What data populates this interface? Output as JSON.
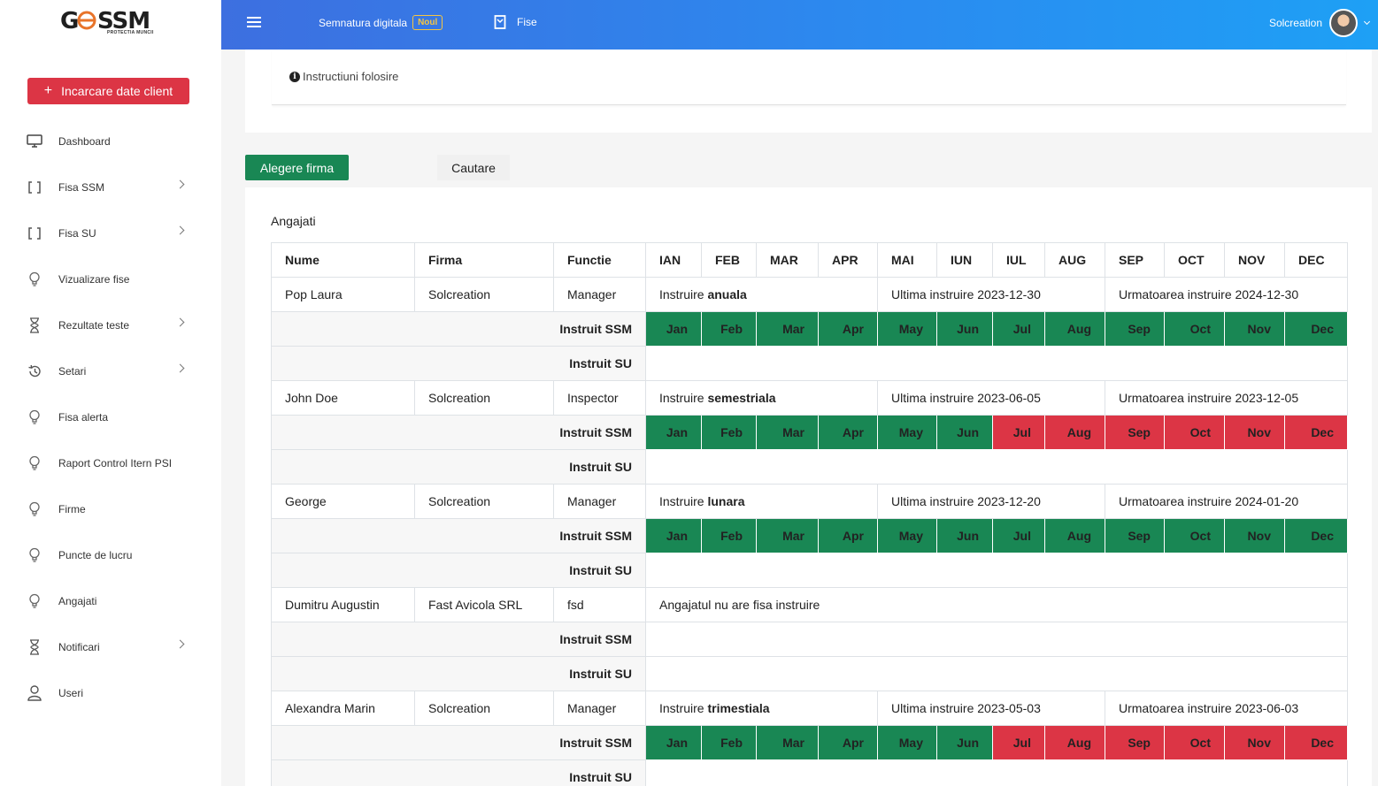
{
  "brand": {
    "logo": "G SSM",
    "tagline": "PROTECTIA MUNCII"
  },
  "sidebar": {
    "load_button": "Incarcare date client",
    "items": [
      {
        "label": "Dashboard",
        "icon": "monitor-icon",
        "has_children": false
      },
      {
        "label": "Fisa SSM",
        "icon": "brackets-icon",
        "has_children": true
      },
      {
        "label": "Fisa SU",
        "icon": "brackets-icon",
        "has_children": true
      },
      {
        "label": "Vizualizare fise",
        "icon": "bulb-icon",
        "has_children": false
      },
      {
        "label": "Rezultate teste",
        "icon": "hourglass-icon",
        "has_children": true
      },
      {
        "label": "Setari",
        "icon": "history-icon",
        "has_children": true
      },
      {
        "label": "Fisa alerta",
        "icon": "bulb-icon",
        "has_children": false
      },
      {
        "label": "Raport Control Itern PSI",
        "icon": "bulb-icon",
        "has_children": false
      },
      {
        "label": "Firme",
        "icon": "bulb-icon",
        "has_children": false
      },
      {
        "label": "Puncte de lucru",
        "icon": "bulb-icon",
        "has_children": false
      },
      {
        "label": "Angajati",
        "icon": "bulb-icon",
        "has_children": false
      },
      {
        "label": "Notificari",
        "icon": "hourglass-icon",
        "has_children": true
      },
      {
        "label": "Useri",
        "icon": "user-icon",
        "has_children": false
      }
    ]
  },
  "topbar": {
    "signature": "Semnatura digitala",
    "new_badge": "Noul",
    "fise": "Fise",
    "username": "Solcreation"
  },
  "instructions": "Instructiuni folosire",
  "tabs": {
    "choose_company": "Alegere firma",
    "search": "Cautare"
  },
  "section_title": "Angajati",
  "table": {
    "headers": [
      "Nume",
      "Firma",
      "Functie"
    ],
    "months_header": [
      "IAN",
      "FEB",
      "MAR",
      "APR",
      "MAI",
      "IUN",
      "IUL",
      "AUG",
      "SEP",
      "OCT",
      "NOV",
      "DEC"
    ],
    "months": [
      "Jan",
      "Feb",
      "Mar",
      "Apr",
      "May",
      "Jun",
      "Jul",
      "Aug",
      "Sep",
      "Oct",
      "Nov",
      "Dec"
    ],
    "ssm_label": "Instruit SSM",
    "su_label": "Instruit SU",
    "employees": [
      {
        "name": "Pop Laura",
        "company": "Solcreation",
        "role": "Manager",
        "training_prefix": "Instruire ",
        "training_type": "anuala",
        "last": "Ultima instruire 2023-12-30",
        "next": "Urmatoarea instruire 2024-12-30",
        "status": [
          "g",
          "g",
          "g",
          "g",
          "g",
          "g",
          "g",
          "g",
          "g",
          "g",
          "g",
          "g"
        ]
      },
      {
        "name": "John Doe",
        "company": "Solcreation",
        "role": "Inspector",
        "training_prefix": "Instruire ",
        "training_type": "semestriala",
        "last": "Ultima instruire 2023-06-05",
        "next": "Urmatoarea instruire 2023-12-05",
        "status": [
          "g",
          "g",
          "g",
          "g",
          "g",
          "g",
          "r",
          "r",
          "r",
          "r",
          "r",
          "r"
        ]
      },
      {
        "name": "George",
        "company": "Solcreation",
        "role": "Manager",
        "training_prefix": "Instruire ",
        "training_type": "lunara",
        "last": "Ultima instruire 2023-12-20",
        "next": "Urmatoarea instruire 2024-01-20",
        "status": [
          "g",
          "g",
          "g",
          "g",
          "g",
          "g",
          "g",
          "g",
          "g",
          "g",
          "g",
          "g"
        ]
      },
      {
        "name": "Dumitru Augustin",
        "company": "Fast Avicola SRL",
        "role": "fsd",
        "no_sheet": "Angajatul nu are fisa instruire"
      },
      {
        "name": "Alexandra Marin",
        "company": "Solcreation",
        "role": "Manager",
        "training_prefix": "Instruire ",
        "training_type": "trimestiala",
        "last": "Ultima instruire 2023-05-03",
        "next": "Urmatoarea instruire 2023-06-03",
        "status": [
          "g",
          "g",
          "g",
          "g",
          "g",
          "g",
          "r",
          "r",
          "r",
          "r",
          "r",
          "r"
        ]
      }
    ]
  },
  "colors": {
    "green": "#198754",
    "red": "#dc3545",
    "accent_blue": "#3d6fe0"
  }
}
